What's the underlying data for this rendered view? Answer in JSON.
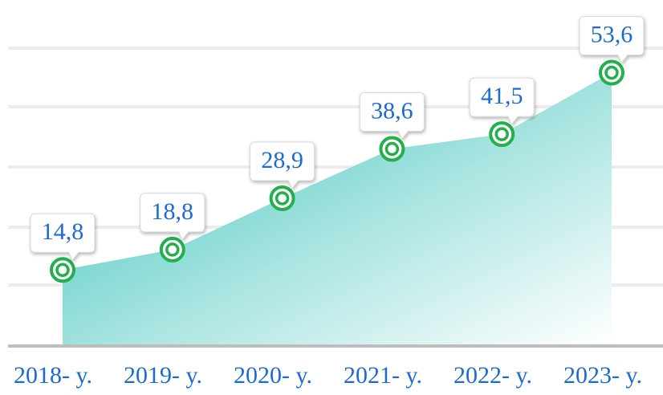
{
  "chart_data": {
    "type": "area",
    "categories": [
      "2018- y.",
      "2019- y.",
      "2020- y.",
      "2021- y.",
      "2022- y.",
      "2023- y."
    ],
    "values": [
      14.8,
      18.8,
      28.9,
      38.6,
      41.5,
      53.6
    ],
    "value_labels": [
      "14,8",
      "18,8",
      "28,9",
      "38,6",
      "41,5",
      "53,6"
    ],
    "color": "#3cc4bc",
    "marker_color": "#22b04a",
    "ylim": [
      0,
      60
    ]
  }
}
